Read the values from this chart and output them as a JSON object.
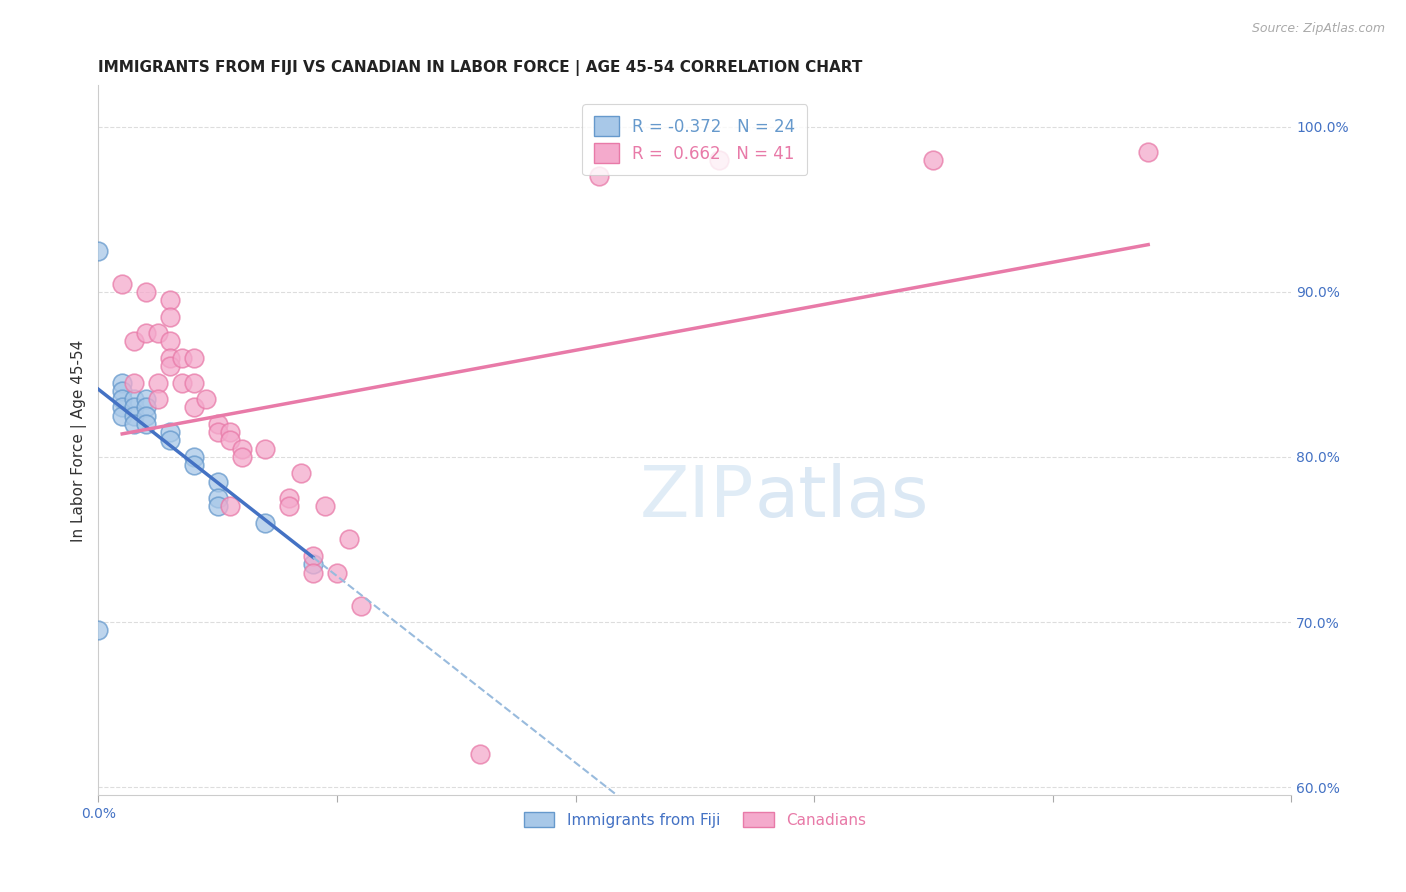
{
  "title": "IMMIGRANTS FROM FIJI VS CANADIAN IN LABOR FORCE | AGE 45-54 CORRELATION CHART",
  "source": "Source: ZipAtlas.com",
  "ylabel": "In Labor Force | Age 45-54",
  "xlim": [
    0.0,
    0.05
  ],
  "ylim": [
    0.595,
    1.025
  ],
  "x_ticks": [
    0.0,
    0.01,
    0.02,
    0.03,
    0.04,
    0.05
  ],
  "x_tick_labels": [
    "0.0%",
    "",
    "",
    "",
    "",
    ""
  ],
  "y_ticks_right": [
    0.6,
    0.7,
    0.8,
    0.9,
    1.0
  ],
  "y_tick_labels_right": [
    "60.0%",
    "70.0%",
    "80.0%",
    "90.0%",
    "100.0%"
  ],
  "fiji_color": "#A8C8E8",
  "fiji_color_edge": "#6699CC",
  "canadian_color": "#F4AACC",
  "canadian_color_edge": "#E87AA8",
  "fiji_R": -0.372,
  "fiji_N": 24,
  "canadian_R": 0.662,
  "canadian_N": 41,
  "fiji_points_x": [
    0.0,
    0.0,
    0.001,
    0.001,
    0.001,
    0.001,
    0.001,
    0.0015,
    0.0015,
    0.0015,
    0.0015,
    0.002,
    0.002,
    0.002,
    0.002,
    0.003,
    0.003,
    0.004,
    0.004,
    0.005,
    0.005,
    0.005,
    0.007,
    0.009
  ],
  "fiji_points_y": [
    0.925,
    0.695,
    0.845,
    0.84,
    0.835,
    0.83,
    0.825,
    0.835,
    0.83,
    0.825,
    0.82,
    0.835,
    0.83,
    0.825,
    0.82,
    0.815,
    0.81,
    0.8,
    0.795,
    0.785,
    0.775,
    0.77,
    0.76,
    0.735
  ],
  "canadian_points_x": [
    0.001,
    0.0015,
    0.0015,
    0.002,
    0.002,
    0.0025,
    0.0025,
    0.0025,
    0.003,
    0.003,
    0.003,
    0.003,
    0.003,
    0.0035,
    0.0035,
    0.004,
    0.004,
    0.004,
    0.0045,
    0.005,
    0.005,
    0.0055,
    0.0055,
    0.0055,
    0.006,
    0.006,
    0.007,
    0.008,
    0.008,
    0.0085,
    0.009,
    0.009,
    0.0095,
    0.01,
    0.0105,
    0.011,
    0.016,
    0.021,
    0.026,
    0.035,
    0.044
  ],
  "canadian_points_y": [
    0.905,
    0.87,
    0.845,
    0.9,
    0.875,
    0.875,
    0.845,
    0.835,
    0.895,
    0.885,
    0.87,
    0.86,
    0.855,
    0.86,
    0.845,
    0.86,
    0.845,
    0.83,
    0.835,
    0.82,
    0.815,
    0.815,
    0.81,
    0.77,
    0.805,
    0.8,
    0.805,
    0.775,
    0.77,
    0.79,
    0.74,
    0.73,
    0.77,
    0.73,
    0.75,
    0.71,
    0.62,
    0.97,
    0.98,
    0.98,
    0.985
  ],
  "grid_color": "#DDDDDD",
  "background_color": "#FFFFFF",
  "title_fontsize": 11,
  "axis_label_fontsize": 11,
  "tick_fontsize": 10,
  "fiji_line_color_solid": "#4472C4",
  "fiji_line_color_dashed": "#99BBDD",
  "canadian_line_color": "#E87AA8"
}
